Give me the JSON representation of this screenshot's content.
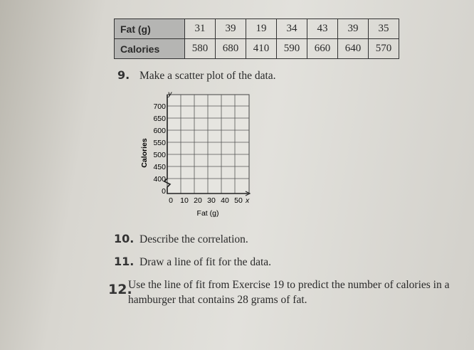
{
  "table": {
    "rows": [
      [
        "Fat (g)",
        31,
        39,
        19,
        34,
        43,
        39,
        35
      ],
      [
        "Calories",
        580,
        680,
        410,
        590,
        660,
        640,
        570
      ]
    ]
  },
  "questions": [
    {
      "number": "9.",
      "text": "Make a scatter plot of the data."
    },
    {
      "number": "10.",
      "text": "Describe the correlation."
    },
    {
      "number": "11.",
      "text": "Draw a line of fit for the data."
    },
    {
      "number": "12.",
      "text": "Use the line of fit from Exercise 19 to predict the number of calories in a hamburger that contains 28 grams of fat."
    }
  ],
  "graph": {
    "y_axis_letter": "y",
    "x_axis_letter": "x",
    "y_label": "Calories",
    "x_label": "Fat (g)",
    "yticks": [
      700,
      650,
      600,
      550,
      500,
      450,
      400,
      0
    ],
    "xticks": [
      0,
      10,
      20,
      30,
      40,
      50
    ]
  }
}
